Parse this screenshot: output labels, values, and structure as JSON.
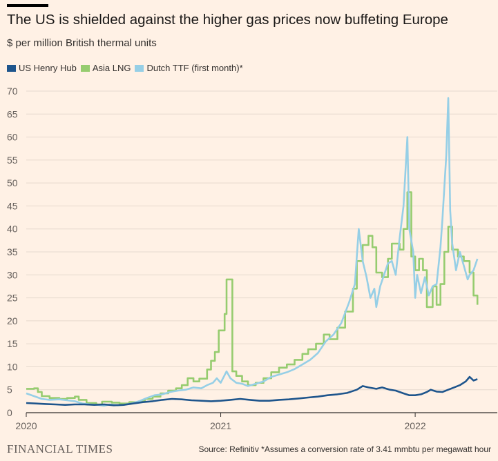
{
  "header": {
    "title": "The US is shielded against the higher gas prices now buffeting Europe",
    "subtitle": "$ per million British thermal units"
  },
  "footer": {
    "logo": "FINANCIAL TIMES",
    "source": "Source: Refinitiv *Assumes a conversion rate of 3.41 mmbtu per megawatt hour"
  },
  "chart_data": {
    "type": "line",
    "title": "The US is shielded against the higher gas prices now buffeting Europe",
    "subtitle": "$ per million British thermal units",
    "xlabel": "",
    "ylabel": "",
    "x_ticks": [
      "2020",
      "2021",
      "2022"
    ],
    "y_ticks": [
      0,
      5,
      10,
      15,
      20,
      25,
      30,
      35,
      40,
      45,
      50,
      55,
      60,
      65,
      70
    ],
    "xlim": [
      2020.0,
      2022.33
    ],
    "ylim": [
      0,
      70
    ],
    "grid": "horizontal",
    "legend_position": "top-left",
    "series": [
      {
        "name": "Asia LNG",
        "color": "#96cc6f",
        "step": true,
        "points": [
          [
            2020.0,
            5.2
          ],
          [
            2020.04,
            5.3
          ],
          [
            2020.06,
            4.5
          ],
          [
            2020.08,
            3.6
          ],
          [
            2020.12,
            3.2
          ],
          [
            2020.17,
            3.0
          ],
          [
            2020.21,
            3.2
          ],
          [
            2020.25,
            3.5
          ],
          [
            2020.27,
            2.8
          ],
          [
            2020.31,
            2.1
          ],
          [
            2020.36,
            1.8
          ],
          [
            2020.39,
            2.4
          ],
          [
            2020.44,
            2.2
          ],
          [
            2020.48,
            2.0
          ],
          [
            2020.53,
            2.3
          ],
          [
            2020.58,
            2.5
          ],
          [
            2020.61,
            3.0
          ],
          [
            2020.65,
            3.5
          ],
          [
            2020.69,
            4.2
          ],
          [
            2020.73,
            4.8
          ],
          [
            2020.77,
            5.3
          ],
          [
            2020.8,
            6.0
          ],
          [
            2020.83,
            7.5
          ],
          [
            2020.86,
            6.8
          ],
          [
            2020.89,
            7.4
          ],
          [
            2020.93,
            9.4
          ],
          [
            2020.95,
            11.3
          ],
          [
            2020.97,
            13.2
          ],
          [
            2020.99,
            17.9
          ],
          [
            2021.02,
            21.5
          ],
          [
            2021.03,
            29.0
          ],
          [
            2021.06,
            9.0
          ],
          [
            2021.08,
            8.0
          ],
          [
            2021.11,
            6.8
          ],
          [
            2021.14,
            6.0
          ],
          [
            2021.18,
            6.5
          ],
          [
            2021.22,
            7.5
          ],
          [
            2021.26,
            8.8
          ],
          [
            2021.3,
            9.8
          ],
          [
            2021.34,
            10.5
          ],
          [
            2021.38,
            11.5
          ],
          [
            2021.42,
            12.8
          ],
          [
            2021.45,
            13.8
          ],
          [
            2021.49,
            15.0
          ],
          [
            2021.53,
            17.0
          ],
          [
            2021.56,
            16.0
          ],
          [
            2021.6,
            18.5
          ],
          [
            2021.64,
            22.0
          ],
          [
            2021.68,
            27.0
          ],
          [
            2021.7,
            33.0
          ],
          [
            2021.73,
            36.5
          ],
          [
            2021.76,
            38.5
          ],
          [
            2021.78,
            36.0
          ],
          [
            2021.8,
            30.5
          ],
          [
            2021.83,
            29.5
          ],
          [
            2021.86,
            33.5
          ],
          [
            2021.88,
            36.8
          ],
          [
            2021.92,
            35.5
          ],
          [
            2021.94,
            40.0
          ],
          [
            2021.96,
            48.0
          ],
          [
            2021.98,
            34.0
          ],
          [
            2022.0,
            31.0
          ],
          [
            2022.02,
            33.5
          ],
          [
            2022.04,
            31.0
          ],
          [
            2022.06,
            23.0
          ],
          [
            2022.09,
            27.5
          ],
          [
            2022.11,
            23.5
          ],
          [
            2022.13,
            28.0
          ],
          [
            2022.15,
            35.0
          ],
          [
            2022.17,
            40.5
          ],
          [
            2022.19,
            35.5
          ],
          [
            2022.22,
            34.0
          ],
          [
            2022.25,
            33.0
          ],
          [
            2022.28,
            30.5
          ],
          [
            2022.3,
            25.5
          ],
          [
            2022.32,
            23.5
          ]
        ]
      },
      {
        "name": "Dutch TTF (first month)*",
        "color": "#96cfe6",
        "step": false,
        "points": [
          [
            2020.0,
            4.2
          ],
          [
            2020.04,
            3.6
          ],
          [
            2020.08,
            3.0
          ],
          [
            2020.12,
            2.8
          ],
          [
            2020.17,
            2.9
          ],
          [
            2020.21,
            2.7
          ],
          [
            2020.25,
            2.5
          ],
          [
            2020.29,
            2.0
          ],
          [
            2020.33,
            1.8
          ],
          [
            2020.37,
            1.7
          ],
          [
            2020.4,
            1.5
          ],
          [
            2020.43,
            1.8
          ],
          [
            2020.47,
            1.6
          ],
          [
            2020.5,
            1.7
          ],
          [
            2020.54,
            2.0
          ],
          [
            2020.58,
            2.5
          ],
          [
            2020.62,
            3.2
          ],
          [
            2020.66,
            3.8
          ],
          [
            2020.7,
            4.0
          ],
          [
            2020.74,
            4.5
          ],
          [
            2020.78,
            4.8
          ],
          [
            2020.82,
            5.0
          ],
          [
            2020.86,
            5.5
          ],
          [
            2020.9,
            5.3
          ],
          [
            2020.93,
            6.0
          ],
          [
            2020.96,
            6.5
          ],
          [
            2020.98,
            7.5
          ],
          [
            2021.0,
            6.5
          ],
          [
            2021.03,
            9.0
          ],
          [
            2021.05,
            7.5
          ],
          [
            2021.08,
            6.5
          ],
          [
            2021.11,
            6.3
          ],
          [
            2021.14,
            5.8
          ],
          [
            2021.18,
            6.3
          ],
          [
            2021.22,
            6.8
          ],
          [
            2021.26,
            7.8
          ],
          [
            2021.3,
            8.3
          ],
          [
            2021.34,
            8.8
          ],
          [
            2021.38,
            9.5
          ],
          [
            2021.42,
            10.5
          ],
          [
            2021.46,
            11.5
          ],
          [
            2021.5,
            13.0
          ],
          [
            2021.54,
            15.5
          ],
          [
            2021.58,
            17.0
          ],
          [
            2021.62,
            19.5
          ],
          [
            2021.66,
            24.0
          ],
          [
            2021.69,
            28.0
          ],
          [
            2021.71,
            40.0
          ],
          [
            2021.73,
            33.0
          ],
          [
            2021.75,
            29.5
          ],
          [
            2021.77,
            25.0
          ],
          [
            2021.79,
            27.0
          ],
          [
            2021.8,
            23.0
          ],
          [
            2021.82,
            27.5
          ],
          [
            2021.84,
            30.0
          ],
          [
            2021.86,
            32.5
          ],
          [
            2021.88,
            33.0
          ],
          [
            2021.9,
            30.0
          ],
          [
            2021.92,
            38.0
          ],
          [
            2021.94,
            45.0
          ],
          [
            2021.96,
            60.0
          ],
          [
            2021.97,
            40.0
          ],
          [
            2021.99,
            35.0
          ],
          [
            2022.0,
            25.0
          ],
          [
            2022.01,
            30.0
          ],
          [
            2022.03,
            26.0
          ],
          [
            2022.05,
            29.5
          ],
          [
            2022.07,
            25.5
          ],
          [
            2022.09,
            27.5
          ],
          [
            2022.11,
            28.0
          ],
          [
            2022.13,
            36.0
          ],
          [
            2022.14,
            42.0
          ],
          [
            2022.16,
            56.0
          ],
          [
            2022.17,
            68.5
          ],
          [
            2022.18,
            44.0
          ],
          [
            2022.19,
            37.0
          ],
          [
            2022.21,
            31.0
          ],
          [
            2022.23,
            35.0
          ],
          [
            2022.25,
            32.0
          ],
          [
            2022.27,
            29.0
          ],
          [
            2022.28,
            30.0
          ],
          [
            2022.3,
            31.0
          ],
          [
            2022.32,
            33.5
          ]
        ]
      },
      {
        "name": "US Henry Hub",
        "color": "#1e558c",
        "step": false,
        "points": [
          [
            2020.0,
            2.1
          ],
          [
            2020.05,
            2.0
          ],
          [
            2020.1,
            1.9
          ],
          [
            2020.15,
            1.8
          ],
          [
            2020.2,
            1.7
          ],
          [
            2020.25,
            1.8
          ],
          [
            2020.3,
            1.8
          ],
          [
            2020.35,
            1.7
          ],
          [
            2020.4,
            1.8
          ],
          [
            2020.45,
            1.6
          ],
          [
            2020.5,
            1.7
          ],
          [
            2020.55,
            2.0
          ],
          [
            2020.6,
            2.3
          ],
          [
            2020.65,
            2.5
          ],
          [
            2020.7,
            2.8
          ],
          [
            2020.75,
            3.0
          ],
          [
            2020.8,
            2.9
          ],
          [
            2020.85,
            2.7
          ],
          [
            2020.9,
            2.6
          ],
          [
            2020.95,
            2.5
          ],
          [
            2021.0,
            2.6
          ],
          [
            2021.05,
            2.8
          ],
          [
            2021.1,
            3.0
          ],
          [
            2021.15,
            2.8
          ],
          [
            2021.2,
            2.6
          ],
          [
            2021.25,
            2.6
          ],
          [
            2021.3,
            2.8
          ],
          [
            2021.35,
            2.9
          ],
          [
            2021.4,
            3.1
          ],
          [
            2021.45,
            3.3
          ],
          [
            2021.5,
            3.5
          ],
          [
            2021.55,
            3.8
          ],
          [
            2021.6,
            4.0
          ],
          [
            2021.65,
            4.3
          ],
          [
            2021.7,
            5.0
          ],
          [
            2021.73,
            5.8
          ],
          [
            2021.76,
            5.5
          ],
          [
            2021.8,
            5.2
          ],
          [
            2021.83,
            5.5
          ],
          [
            2021.87,
            5.0
          ],
          [
            2021.9,
            4.8
          ],
          [
            2021.94,
            4.2
          ],
          [
            2021.97,
            3.8
          ],
          [
            2022.0,
            3.8
          ],
          [
            2022.03,
            4.0
          ],
          [
            2022.06,
            4.5
          ],
          [
            2022.08,
            5.0
          ],
          [
            2022.11,
            4.6
          ],
          [
            2022.14,
            4.5
          ],
          [
            2022.17,
            5.0
          ],
          [
            2022.2,
            5.5
          ],
          [
            2022.23,
            6.0
          ],
          [
            2022.26,
            6.8
          ],
          [
            2022.28,
            7.8
          ],
          [
            2022.3,
            7.0
          ],
          [
            2022.32,
            7.3
          ]
        ]
      }
    ]
  }
}
